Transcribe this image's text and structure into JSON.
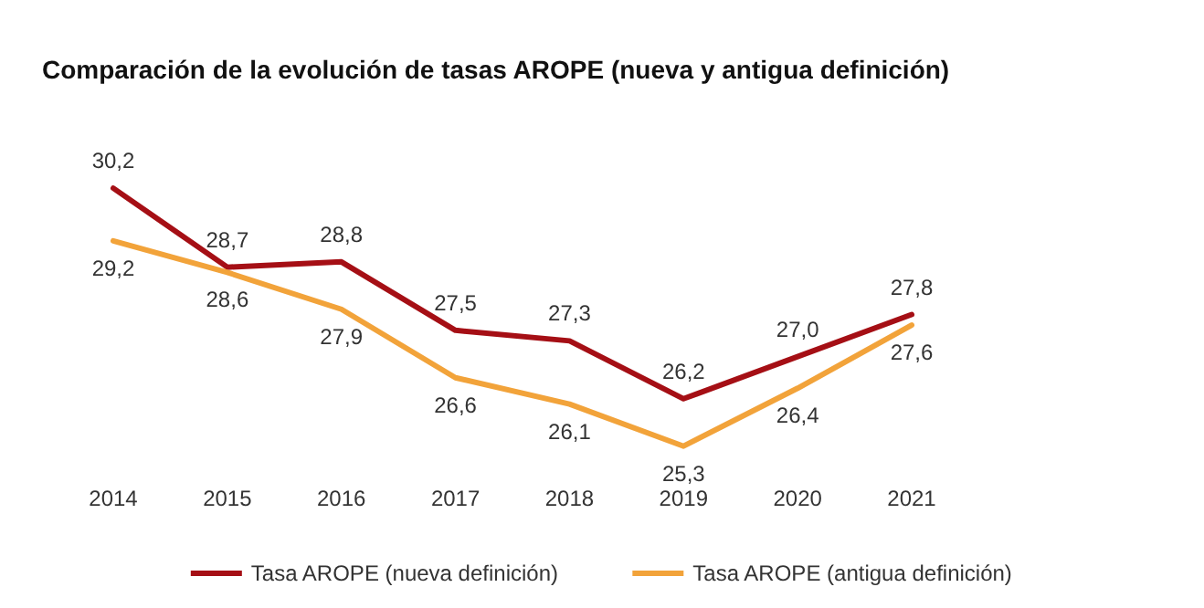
{
  "chart_data": {
    "type": "line",
    "title": "Comparación de la evolución de tasas AROPE (nueva y antigua definición)",
    "categories": [
      "2014",
      "2015",
      "2016",
      "2017",
      "2018",
      "2019",
      "2020",
      "2021"
    ],
    "series": [
      {
        "name": "Tasa AROPE (nueva definición)",
        "color": "#a50f15",
        "values": [
          30.2,
          28.7,
          28.8,
          27.5,
          27.3,
          26.2,
          27.0,
          27.8
        ],
        "value_labels": [
          "30,2",
          "28,7",
          "28,8",
          "27,5",
          "27,3",
          "26,2",
          "27,0",
          "27,8"
        ]
      },
      {
        "name": "Tasa AROPE (antigua definición)",
        "color": "#f2a33a",
        "values": [
          29.2,
          28.6,
          27.9,
          26.6,
          26.1,
          25.3,
          26.4,
          27.6
        ],
        "value_labels": [
          "29,2",
          "28,6",
          "27,9",
          "26,6",
          "26,1",
          "25,3",
          "26,4",
          "27,6"
        ]
      }
    ],
    "legend": "bottom",
    "grid": false,
    "marker": "none",
    "line_style": "solid"
  }
}
